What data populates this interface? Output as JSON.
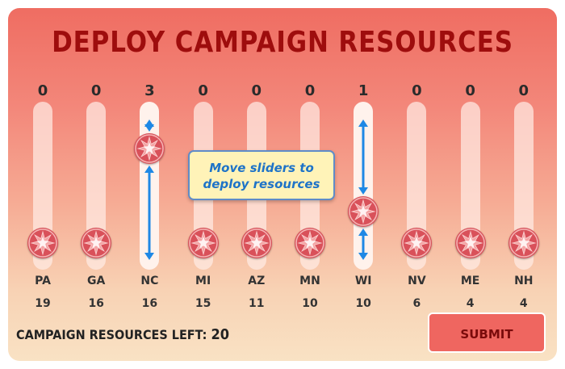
{
  "title": "DEPLOY CAMPAIGN RESOURCES",
  "tooltip": {
    "line1": "Move sliders to",
    "line2": "deploy resources"
  },
  "resources_left": {
    "label": "CAMPAIGN RESOURCES LEFT:",
    "value": "20"
  },
  "submit_label": "SUBMIT",
  "slider_max": 10,
  "colors": {
    "title": "#9e0d0d",
    "knob": "#d9515a",
    "arrow": "#1e88e5",
    "tooltip_text": "#1e73c8"
  },
  "states": [
    {
      "abbr": "PA",
      "ev": "19",
      "count": "0",
      "level": 0,
      "active": false
    },
    {
      "abbr": "GA",
      "ev": "16",
      "count": "0",
      "level": 0,
      "active": false
    },
    {
      "abbr": "NC",
      "ev": "16",
      "count": "3",
      "level": 3,
      "active": true
    },
    {
      "abbr": "MI",
      "ev": "15",
      "count": "0",
      "level": 0,
      "active": false
    },
    {
      "abbr": "AZ",
      "ev": "11",
      "count": "0",
      "level": 0,
      "active": false
    },
    {
      "abbr": "MN",
      "ev": "10",
      "count": "0",
      "level": 0,
      "active": false
    },
    {
      "abbr": "WI",
      "ev": "10",
      "count": "1",
      "level": 1,
      "active": true
    },
    {
      "abbr": "NV",
      "ev": "6",
      "count": "0",
      "level": 0,
      "active": false
    },
    {
      "abbr": "ME",
      "ev": "4",
      "count": "0",
      "level": 0,
      "active": false
    },
    {
      "abbr": "NH",
      "ev": "4",
      "count": "0",
      "level": 0,
      "active": false
    }
  ]
}
